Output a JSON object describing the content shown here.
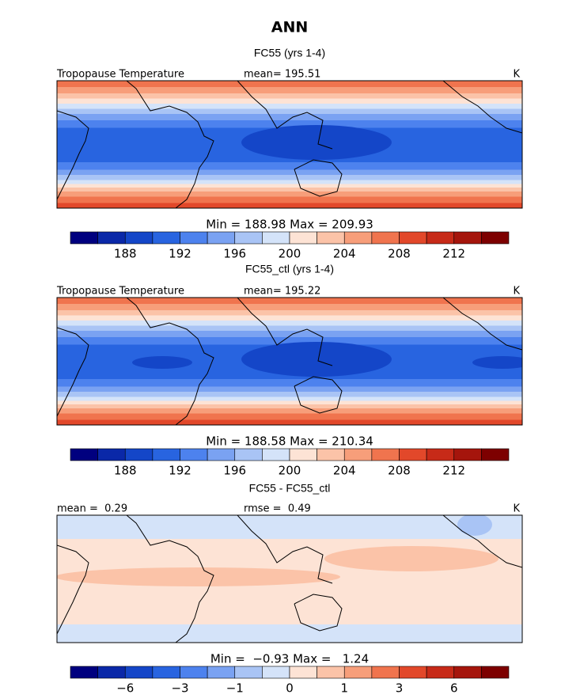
{
  "title": "ANN",
  "panels": [
    {
      "title": "FC55 (yrs 1-4)",
      "left_label": "Tropopause Temperature",
      "center_label": "mean= 195.51",
      "unit": "K",
      "range_label": "Min = 188.98 Max = 209.93",
      "colorbar_ticks": [
        "188",
        "192",
        "196",
        "200",
        "204",
        "208",
        "212"
      ]
    },
    {
      "title": "FC55_ctl (yrs 1-4)",
      "left_label": "Tropopause Temperature",
      "center_label": "mean= 195.22",
      "unit": "K",
      "range_label": "Min = 188.58 Max = 210.34",
      "colorbar_ticks": [
        "188",
        "192",
        "196",
        "200",
        "204",
        "208",
        "212"
      ]
    },
    {
      "title": "FC55 - FC55_ctl",
      "left_label": "mean =  0.29",
      "center_label": "rmse =  0.49",
      "unit": "K",
      "range_label": "Min =  −0.93 Max =   1.24",
      "colorbar_ticks": [
        "−6",
        "−3",
        "−1",
        "0",
        "1",
        "3",
        "6"
      ]
    }
  ]
}
